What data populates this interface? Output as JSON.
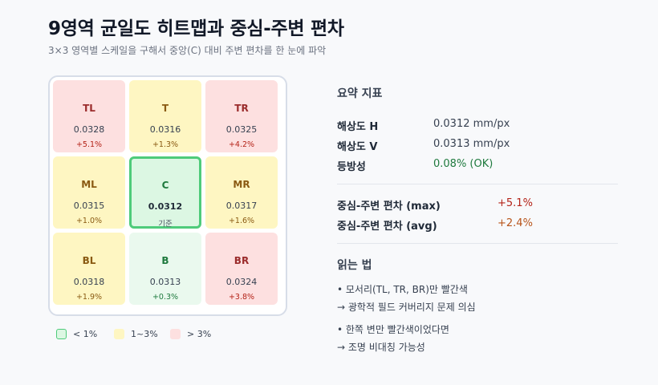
{
  "header": {
    "title": "9영역 균일도 히트맵과 중심-주변 편차",
    "subtitle": "3×3 영역별 스케일을 구해서 중앙(C) 대비 주변 편차를 한 눈에 파악"
  },
  "chart_data": {
    "type": "heatmap",
    "title": "9영역 균일도 히트맵과 중심-주변 편차",
    "rows": 3,
    "cols": 3,
    "unit": "mm/px",
    "cells": [
      {
        "id": "TL",
        "label": "TL",
        "value": "0.0328",
        "deviation": "+5.1%",
        "level": "red"
      },
      {
        "id": "T",
        "label": "T",
        "value": "0.0316",
        "deviation": "+1.3%",
        "level": "yellow"
      },
      {
        "id": "TR",
        "label": "TR",
        "value": "0.0325",
        "deviation": "+4.2%",
        "level": "red"
      },
      {
        "id": "ML",
        "label": "ML",
        "value": "0.0315",
        "deviation": "+1.0%",
        "level": "yellow"
      },
      {
        "id": "C",
        "label": "C",
        "value": "0.0312",
        "deviation": "기준",
        "level": "center"
      },
      {
        "id": "MR",
        "label": "MR",
        "value": "0.0317",
        "deviation": "+1.6%",
        "level": "yellow"
      },
      {
        "id": "BL",
        "label": "BL",
        "value": "0.0318",
        "deviation": "+1.9%",
        "level": "yellow"
      },
      {
        "id": "B",
        "label": "B",
        "value": "0.0313",
        "deviation": "+0.3%",
        "level": "green"
      },
      {
        "id": "BR",
        "label": "BR",
        "value": "0.0324",
        "deviation": "+3.8%",
        "level": "red"
      }
    ],
    "legend": [
      {
        "label": "< 1%",
        "color": "#dcf7e3",
        "border": "#4ecb7a"
      },
      {
        "label": "1~3%",
        "color": "#fef6c2",
        "border": "#fef6c2"
      },
      {
        "label": "> 3%",
        "color": "#fde0e0",
        "border": "#fde0e0"
      }
    ]
  },
  "summary": {
    "title": "요약 지표",
    "h_label": "해상도 H",
    "h_value": "0.0312 mm/px",
    "v_label": "해상도 V",
    "v_value": "0.0313 mm/px",
    "iso_label": "등방성",
    "iso_value": "0.08% (OK)",
    "iso_color": "#1f7a3e",
    "max_label": "중심-주변 편차 (max)",
    "max_value": "+5.1%",
    "max_color": "#b42318",
    "avg_label": "중심-주변 편차 (avg)",
    "avg_value": "+2.4%",
    "avg_color": "#b8541a"
  },
  "reading": {
    "title": "읽는 법",
    "note1_line1": "• 모서리(TL, TR, BR)만 빨간색",
    "note1_line2": "→ 광학적 필드 커버리지 문제 의심",
    "note2_line1": "• 한쪽 변만 빨간색이었다면",
    "note2_line2": "→ 조명 비대칭 가능성"
  }
}
